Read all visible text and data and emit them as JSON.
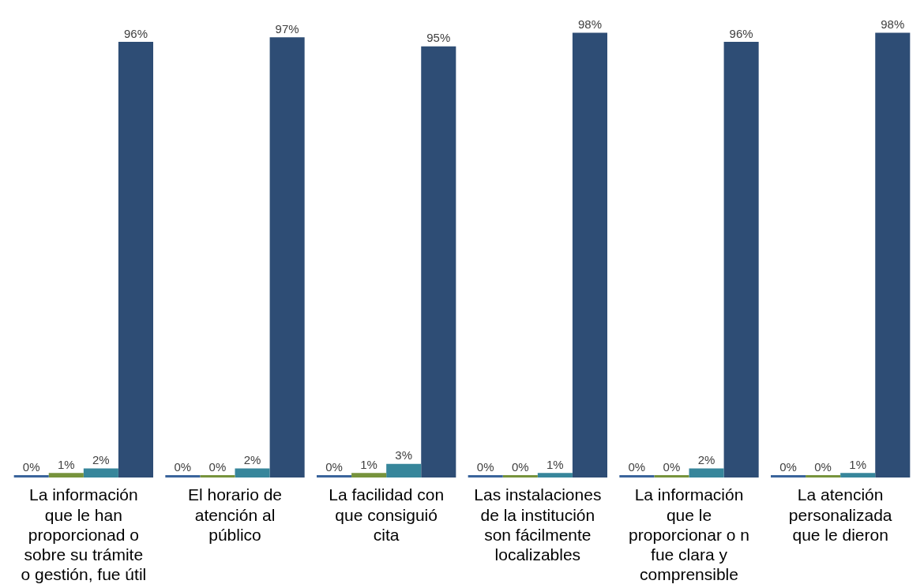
{
  "chart_data": {
    "type": "bar",
    "categories": [
      "La información que le han proporcionad o sobre su trámite o gestión, fue útil",
      "El horario de atención al público",
      "La facilidad con que consiguió cita",
      "Las instalaciones de la institución son fácilmente localizables",
      "La información que le proporcionar o n fue clara y comprensible",
      "La atención personalizada que le dieron"
    ],
    "series": [
      {
        "color": "#3a649b",
        "values": [
          0,
          0,
          0,
          0,
          0,
          0
        ],
        "value_labels": [
          "0%",
          "0%",
          "0%",
          "0%",
          "0%",
          "0%"
        ]
      },
      {
        "color": "#77933c",
        "values": [
          1,
          0,
          1,
          0,
          0,
          0
        ],
        "value_labels": [
          "1%",
          "0%",
          "1%",
          "0%",
          "0%",
          "0%"
        ]
      },
      {
        "color": "#37869b",
        "values": [
          2,
          2,
          3,
          1,
          2,
          1
        ],
        "value_labels": [
          "2%",
          "2%",
          "3%",
          "1%",
          "2%",
          "1%"
        ]
      },
      {
        "color": "#2e4d75",
        "values": [
          96,
          97,
          95,
          98,
          96,
          98
        ],
        "value_labels": [
          "96%",
          "97%",
          "95%",
          "98%",
          "96%",
          "98%"
        ]
      }
    ],
    "legend": false,
    "grid": false
  }
}
